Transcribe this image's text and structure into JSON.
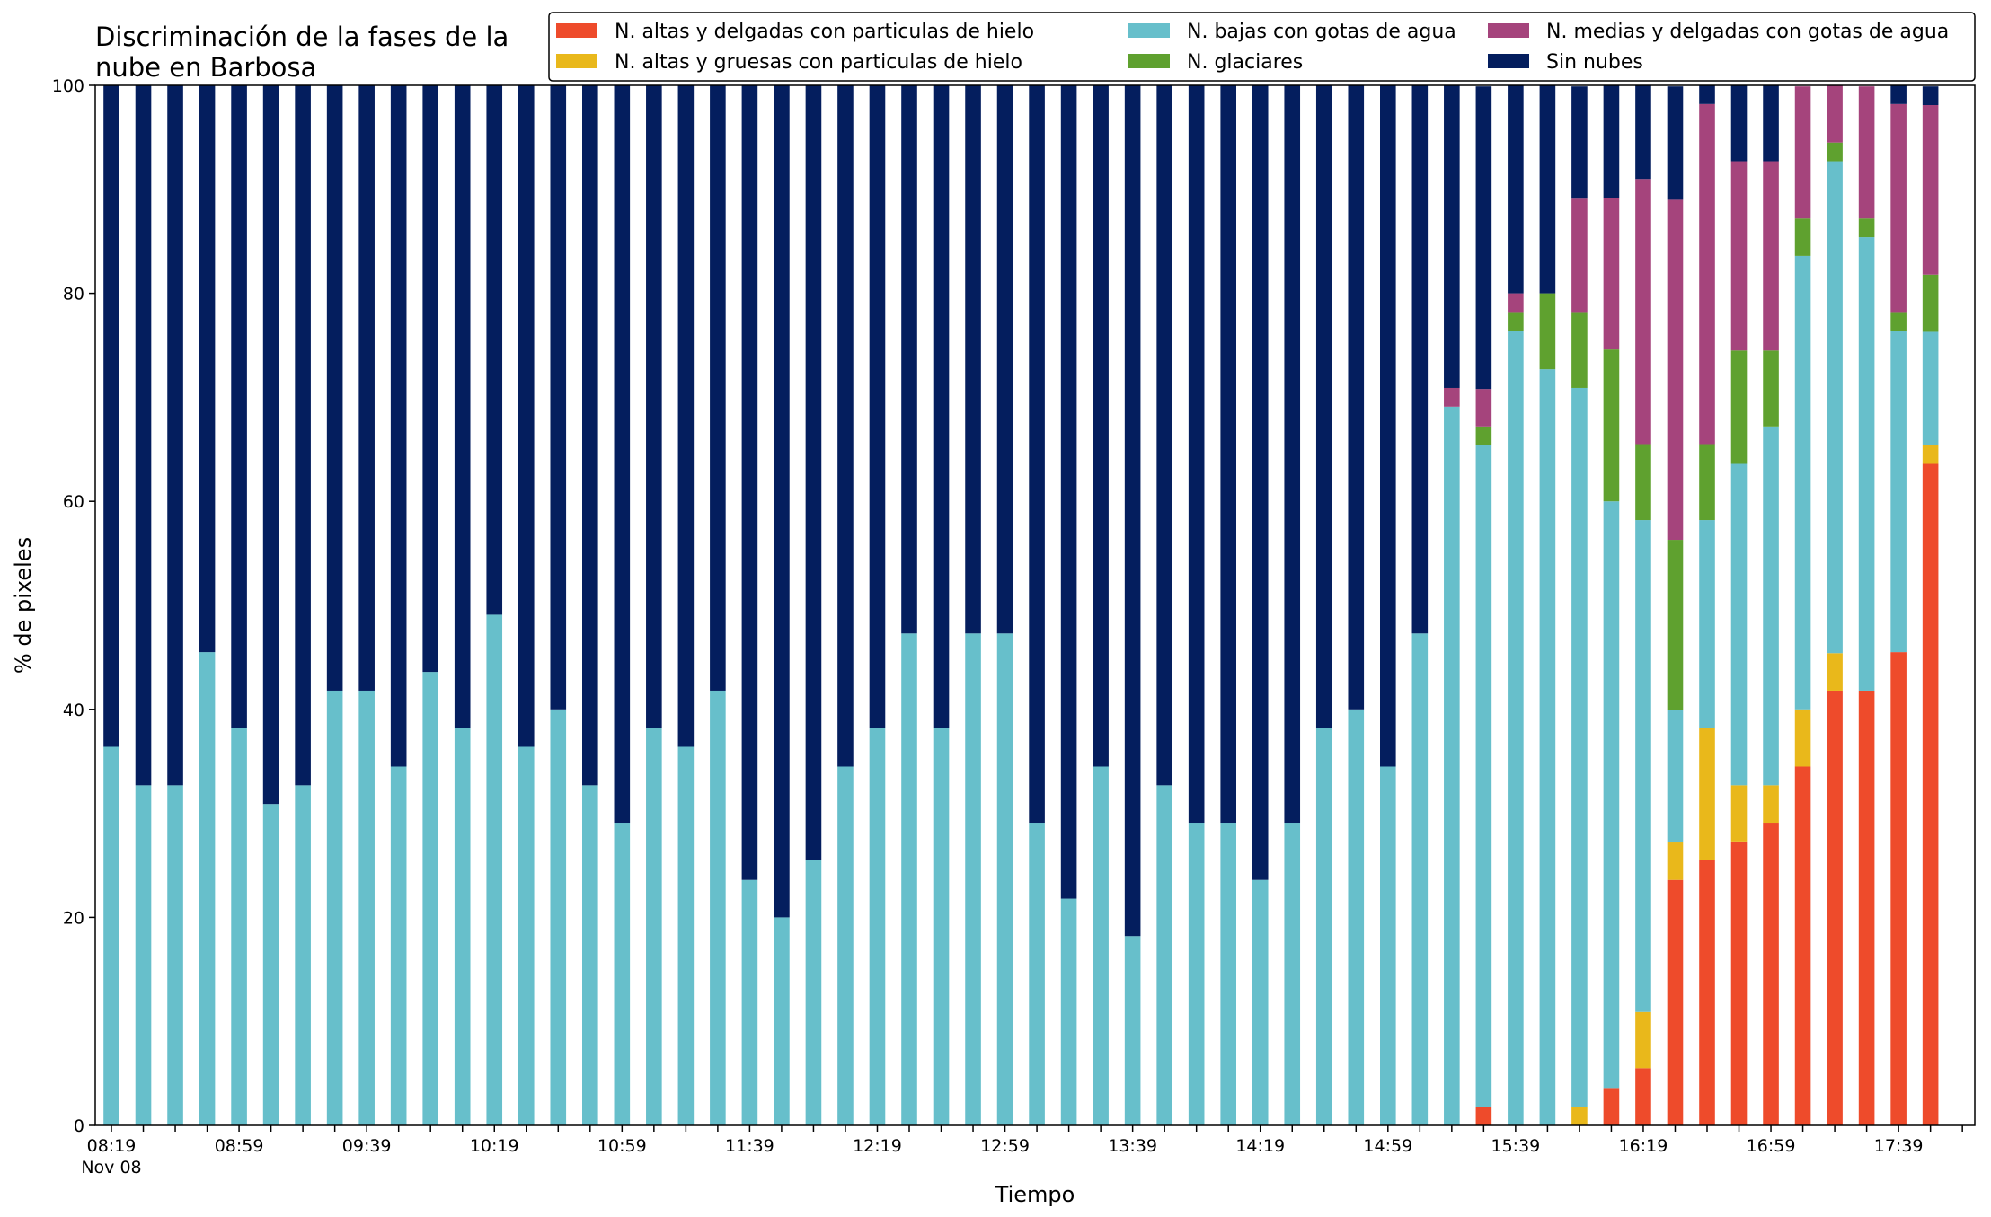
{
  "chart_data": {
    "type": "bar",
    "stacked": true,
    "title_lines": [
      "Discriminación de la fases de la",
      "nube en Barbosa"
    ],
    "xlabel": "Tiempo",
    "ylabel": "% de pixeles",
    "ylim": [
      0,
      100
    ],
    "yticks": [
      0,
      20,
      40,
      60,
      80,
      100
    ],
    "grid": false,
    "legend_position": "top-right",
    "x_tick_labels": [
      {
        "index": 0,
        "lines": [
          "08:19",
          "Nov 08"
        ]
      },
      {
        "index": 4,
        "lines": [
          "08:59"
        ]
      },
      {
        "index": 8,
        "lines": [
          "09:39"
        ]
      },
      {
        "index": 12,
        "lines": [
          "10:19"
        ]
      },
      {
        "index": 16,
        "lines": [
          "10:59"
        ]
      },
      {
        "index": 20,
        "lines": [
          "11:39"
        ]
      },
      {
        "index": 24,
        "lines": [
          "12:19"
        ]
      },
      {
        "index": 28,
        "lines": [
          "12:59"
        ]
      },
      {
        "index": 32,
        "lines": [
          "13:39"
        ]
      },
      {
        "index": 36,
        "lines": [
          "14:19"
        ]
      },
      {
        "index": 40,
        "lines": [
          "14:59"
        ]
      },
      {
        "index": 44,
        "lines": [
          "15:39"
        ]
      },
      {
        "index": 48,
        "lines": [
          "16:19"
        ]
      },
      {
        "index": 52,
        "lines": [
          "16:59"
        ]
      },
      {
        "index": 56,
        "lines": [
          "17:39"
        ]
      }
    ],
    "categories": [
      "08:19",
      "08:29",
      "08:39",
      "08:49",
      "08:59",
      "09:09",
      "09:19",
      "09:29",
      "09:39",
      "09:49",
      "09:59",
      "10:09",
      "10:19",
      "10:29",
      "10:39",
      "10:49",
      "10:59",
      "11:09",
      "11:19",
      "11:29",
      "11:39",
      "11:49",
      "11:59",
      "12:09",
      "12:19",
      "12:29",
      "12:39",
      "12:49",
      "12:59",
      "13:09",
      "13:19",
      "13:29",
      "13:39",
      "13:49",
      "13:59",
      "14:09",
      "14:19",
      "14:29",
      "14:39",
      "14:49",
      "14:59",
      "15:09",
      "15:19",
      "15:29",
      "15:39",
      "15:49",
      "15:59",
      "16:09",
      "16:19",
      "16:29",
      "16:39",
      "16:49",
      "16:59",
      "17:09",
      "17:19",
      "17:29",
      "17:39",
      "17:49"
    ],
    "series": [
      {
        "name": "N. altas y delgadas con particulas de hielo",
        "color": "#ee4b2b",
        "values": [
          0,
          0,
          0,
          0,
          0,
          0,
          0,
          0,
          0,
          0,
          0,
          0,
          0,
          0,
          0,
          0,
          0,
          0,
          0,
          0,
          0,
          0,
          0,
          0,
          0,
          0,
          0,
          0,
          0,
          0,
          0,
          0,
          0,
          0,
          0,
          0,
          0,
          0,
          0,
          0,
          0,
          0,
          0,
          1.8,
          0,
          0,
          0,
          3.6,
          5.5,
          23.6,
          25.5,
          27.3,
          29.1,
          34.5,
          41.8,
          41.8,
          45.5,
          63.6
        ]
      },
      {
        "name": "N. altas y gruesas con particulas de hielo",
        "color": "#e9b81b",
        "values": [
          0,
          0,
          0,
          0,
          0,
          0,
          0,
          0,
          0,
          0,
          0,
          0,
          0,
          0,
          0,
          0,
          0,
          0,
          0,
          0,
          0,
          0,
          0,
          0,
          0,
          0,
          0,
          0,
          0,
          0,
          0,
          0,
          0,
          0,
          0,
          0,
          0,
          0,
          0,
          0,
          0,
          0,
          0,
          0,
          0,
          0,
          1.8,
          0,
          5.4,
          3.6,
          12.7,
          5.4,
          3.6,
          5.5,
          3.6,
          0,
          0,
          1.8
        ]
      },
      {
        "name": "N. bajas con gotas de agua",
        "color": "#67bfcb",
        "values": [
          36.4,
          32.7,
          32.7,
          45.5,
          38.2,
          30.9,
          32.7,
          41.8,
          41.8,
          34.5,
          43.6,
          38.2,
          49.1,
          36.4,
          40.0,
          32.7,
          29.1,
          38.2,
          36.4,
          41.8,
          23.6,
          20.0,
          25.5,
          34.5,
          38.2,
          47.3,
          38.2,
          47.3,
          47.3,
          29.1,
          21.8,
          34.5,
          18.2,
          32.7,
          29.1,
          29.1,
          23.6,
          29.1,
          38.2,
          40.0,
          34.5,
          47.3,
          69.1,
          63.6,
          76.4,
          72.7,
          69.1,
          56.4,
          47.3,
          12.7,
          20.0,
          30.9,
          34.5,
          43.6,
          47.3,
          43.6,
          30.9,
          10.9
        ]
      },
      {
        "name": "N. glaciares",
        "color": "#5fa12f",
        "values": [
          0,
          0,
          0,
          0,
          0,
          0,
          0,
          0,
          0,
          0,
          0,
          0,
          0,
          0,
          0,
          0,
          0,
          0,
          0,
          0,
          0,
          0,
          0,
          0,
          0,
          0,
          0,
          0,
          0,
          0,
          0,
          0,
          0,
          0,
          0,
          0,
          0,
          0,
          0,
          0,
          0,
          0,
          0,
          1.8,
          1.8,
          7.3,
          7.3,
          14.6,
          7.3,
          16.4,
          7.3,
          10.9,
          7.3,
          3.6,
          1.8,
          1.8,
          1.8,
          5.5
        ]
      },
      {
        "name": "N. medias y delgadas con gotas de agua",
        "color": "#a5447c",
        "values": [
          0,
          0,
          0,
          0,
          0,
          0,
          0,
          0,
          0,
          0,
          0,
          0,
          0,
          0,
          0,
          0,
          0,
          0,
          0,
          0,
          0,
          0,
          0,
          0,
          0,
          0,
          0,
          0,
          0,
          0,
          0,
          0,
          0,
          0,
          0,
          0,
          0,
          0,
          0,
          0,
          0,
          0,
          1.8,
          3.6,
          1.8,
          0,
          10.9,
          14.6,
          25.5,
          32.7,
          32.7,
          18.2,
          18.2,
          12.7,
          5.5,
          12.7,
          20.0,
          16.3
        ]
      },
      {
        "name": "Sin nubes",
        "color": "#041e5e",
        "values": [
          63.6,
          67.3,
          67.3,
          54.5,
          61.8,
          69.1,
          67.3,
          58.2,
          58.2,
          65.5,
          56.4,
          61.8,
          50.9,
          63.6,
          60.0,
          67.3,
          70.9,
          61.8,
          63.6,
          58.2,
          76.4,
          80.0,
          74.5,
          65.5,
          61.8,
          52.7,
          61.8,
          52.7,
          52.7,
          70.9,
          78.2,
          65.5,
          81.8,
          67.3,
          70.9,
          70.9,
          76.4,
          70.9,
          61.8,
          60.0,
          65.5,
          52.7,
          29.1,
          29.1,
          20.0,
          20.0,
          10.8,
          10.8,
          9.0,
          10.9,
          1.8,
          7.3,
          7.3,
          0,
          0,
          0,
          1.8,
          1.8
        ]
      }
    ]
  }
}
